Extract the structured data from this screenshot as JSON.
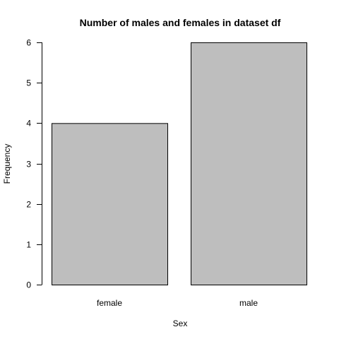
{
  "chart_data": {
    "type": "bar",
    "title": "Number of males and females in dataset df",
    "xlabel": "Sex",
    "ylabel": "Frequency",
    "categories": [
      "female",
      "male"
    ],
    "values": [
      4,
      6
    ],
    "ylim": [
      0,
      6
    ],
    "yticks": [
      "0",
      "1",
      "2",
      "3",
      "4",
      "5",
      "6"
    ],
    "bar_fill": "#bebebe",
    "bar_stroke": "#000000",
    "grid": false,
    "legend": "none"
  }
}
